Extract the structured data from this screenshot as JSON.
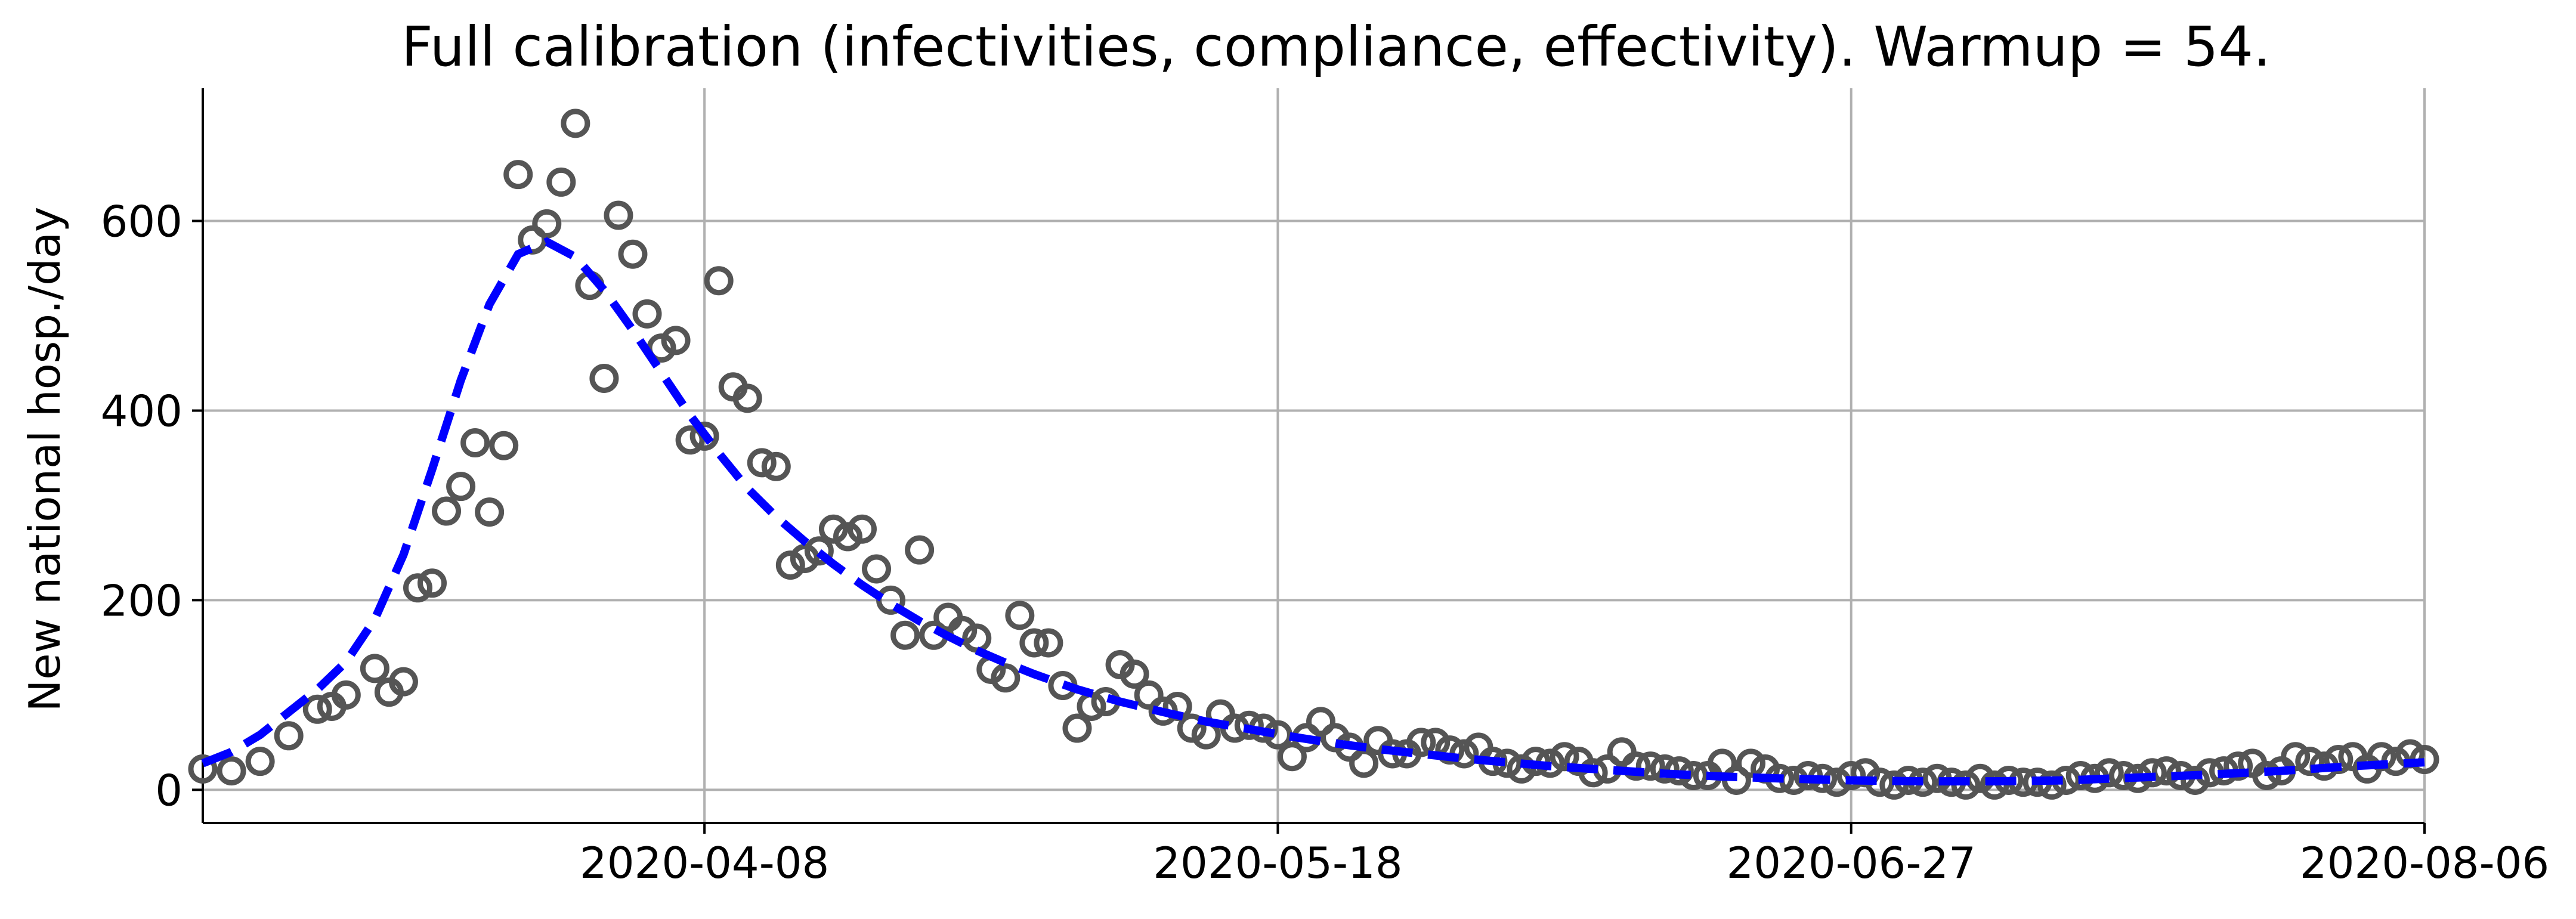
{
  "chart_data": {
    "type": "scatter",
    "title": "Full calibration (infectivities, compliance, effectivity). Warmup = 54.",
    "xlabel": "",
    "ylabel": "New national hosp./day",
    "x_start": "2020-03-04",
    "x_end": "2020-08-06",
    "xticks": [
      "2020-04-08",
      "2020-05-18",
      "2020-06-27",
      "2020-08-06"
    ],
    "yticks": [
      0,
      200,
      400,
      600
    ],
    "ylim": [
      -35,
      740
    ],
    "grid": true,
    "colors": {
      "observed": "#555555",
      "model": "#0000ff"
    },
    "series": [
      {
        "style": "open-circle",
        "points": [
          [
            "2020-03-04",
            22
          ],
          [
            "2020-03-06",
            20
          ],
          [
            "2020-03-08",
            30
          ],
          [
            "2020-03-10",
            57
          ],
          [
            "2020-03-12",
            85
          ],
          [
            "2020-03-13",
            88
          ],
          [
            "2020-03-14",
            100
          ],
          [
            "2020-03-16",
            128
          ],
          [
            "2020-03-17",
            103
          ],
          [
            "2020-03-18",
            114
          ],
          [
            "2020-03-19",
            213
          ],
          [
            "2020-03-20",
            218
          ],
          [
            "2020-03-21",
            294
          ],
          [
            "2020-03-22",
            320
          ],
          [
            "2020-03-23",
            366
          ],
          [
            "2020-03-24",
            293
          ],
          [
            "2020-03-25",
            363
          ],
          [
            "2020-03-26",
            649
          ],
          [
            "2020-03-27",
            580
          ],
          [
            "2020-03-28",
            597
          ],
          [
            "2020-03-29",
            641
          ],
          [
            "2020-03-30",
            703
          ],
          [
            "2020-03-31",
            532
          ],
          [
            "2020-04-01",
            434
          ],
          [
            "2020-04-02",
            606
          ],
          [
            "2020-04-03",
            565
          ],
          [
            "2020-04-04",
            502
          ],
          [
            "2020-04-05",
            466
          ],
          [
            "2020-04-06",
            474
          ],
          [
            "2020-04-07",
            369
          ],
          [
            "2020-04-08",
            373
          ],
          [
            "2020-04-09",
            537
          ],
          [
            "2020-04-10",
            425
          ],
          [
            "2020-04-11",
            413
          ],
          [
            "2020-04-12",
            345
          ],
          [
            "2020-04-13",
            341
          ],
          [
            "2020-04-14",
            237
          ],
          [
            "2020-04-15",
            244
          ],
          [
            "2020-04-16",
            252
          ],
          [
            "2020-04-17",
            275
          ],
          [
            "2020-04-18",
            267
          ],
          [
            "2020-04-19",
            275
          ],
          [
            "2020-04-20",
            233
          ],
          [
            "2020-04-21",
            200
          ],
          [
            "2020-04-22",
            163
          ],
          [
            "2020-04-23",
            253
          ],
          [
            "2020-04-24",
            163
          ],
          [
            "2020-04-25",
            182
          ],
          [
            "2020-04-26",
            168
          ],
          [
            "2020-04-27",
            160
          ],
          [
            "2020-04-28",
            127
          ],
          [
            "2020-04-29",
            118
          ],
          [
            "2020-04-30",
            184
          ],
          [
            "2020-05-01",
            155
          ],
          [
            "2020-05-02",
            155
          ],
          [
            "2020-05-03",
            110
          ],
          [
            "2020-05-04",
            65
          ],
          [
            "2020-05-05",
            88
          ],
          [
            "2020-05-06",
            93
          ],
          [
            "2020-05-07",
            132
          ],
          [
            "2020-05-08",
            122
          ],
          [
            "2020-05-09",
            100
          ],
          [
            "2020-05-10",
            83
          ],
          [
            "2020-05-11",
            88
          ],
          [
            "2020-05-12",
            65
          ],
          [
            "2020-05-13",
            58
          ],
          [
            "2020-05-14",
            80
          ],
          [
            "2020-05-15",
            65
          ],
          [
            "2020-05-16",
            68
          ],
          [
            "2020-05-17",
            65
          ],
          [
            "2020-05-18",
            58
          ],
          [
            "2020-05-19",
            35
          ],
          [
            "2020-05-20",
            55
          ],
          [
            "2020-05-21",
            72
          ],
          [
            "2020-05-22",
            55
          ],
          [
            "2020-05-23",
            45
          ],
          [
            "2020-05-24",
            28
          ],
          [
            "2020-05-25",
            52
          ],
          [
            "2020-05-26",
            38
          ],
          [
            "2020-05-27",
            38
          ],
          [
            "2020-05-28",
            50
          ],
          [
            "2020-05-29",
            50
          ],
          [
            "2020-05-30",
            42
          ],
          [
            "2020-05-31",
            38
          ],
          [
            "2020-06-01",
            45
          ],
          [
            "2020-06-02",
            30
          ],
          [
            "2020-06-03",
            28
          ],
          [
            "2020-06-04",
            22
          ],
          [
            "2020-06-05",
            30
          ],
          [
            "2020-06-06",
            28
          ],
          [
            "2020-06-07",
            35
          ],
          [
            "2020-06-08",
            30
          ],
          [
            "2020-06-09",
            18
          ],
          [
            "2020-06-10",
            22
          ],
          [
            "2020-06-11",
            40
          ],
          [
            "2020-06-12",
            25
          ],
          [
            "2020-06-13",
            25
          ],
          [
            "2020-06-14",
            22
          ],
          [
            "2020-06-15",
            20
          ],
          [
            "2020-06-16",
            15
          ],
          [
            "2020-06-17",
            15
          ],
          [
            "2020-06-18",
            28
          ],
          [
            "2020-06-19",
            10
          ],
          [
            "2020-06-20",
            28
          ],
          [
            "2020-06-21",
            22
          ],
          [
            "2020-06-22",
            12
          ],
          [
            "2020-06-23",
            10
          ],
          [
            "2020-06-24",
            15
          ],
          [
            "2020-06-25",
            12
          ],
          [
            "2020-06-26",
            8
          ],
          [
            "2020-06-27",
            15
          ],
          [
            "2020-06-28",
            18
          ],
          [
            "2020-06-29",
            8
          ],
          [
            "2020-06-30",
            5
          ],
          [
            "2020-07-01",
            10
          ],
          [
            "2020-07-02",
            8
          ],
          [
            "2020-07-03",
            12
          ],
          [
            "2020-07-04",
            8
          ],
          [
            "2020-07-05",
            5
          ],
          [
            "2020-07-06",
            12
          ],
          [
            "2020-07-07",
            5
          ],
          [
            "2020-07-08",
            10
          ],
          [
            "2020-07-09",
            8
          ],
          [
            "2020-07-10",
            8
          ],
          [
            "2020-07-11",
            5
          ],
          [
            "2020-07-12",
            10
          ],
          [
            "2020-07-13",
            15
          ],
          [
            "2020-07-14",
            12
          ],
          [
            "2020-07-15",
            18
          ],
          [
            "2020-07-16",
            15
          ],
          [
            "2020-07-17",
            12
          ],
          [
            "2020-07-18",
            18
          ],
          [
            "2020-07-19",
            20
          ],
          [
            "2020-07-20",
            15
          ],
          [
            "2020-07-21",
            10
          ],
          [
            "2020-07-22",
            18
          ],
          [
            "2020-07-23",
            20
          ],
          [
            "2020-07-24",
            25
          ],
          [
            "2020-07-25",
            28
          ],
          [
            "2020-07-26",
            15
          ],
          [
            "2020-07-27",
            20
          ],
          [
            "2020-07-28",
            35
          ],
          [
            "2020-07-29",
            30
          ],
          [
            "2020-07-30",
            25
          ],
          [
            "2020-07-31",
            32
          ],
          [
            "2020-08-01",
            35
          ],
          [
            "2020-08-02",
            22
          ],
          [
            "2020-08-03",
            35
          ],
          [
            "2020-08-04",
            30
          ],
          [
            "2020-08-05",
            38
          ],
          [
            "2020-08-06",
            32
          ]
        ]
      },
      {
        "style": "dashed-line",
        "points": [
          [
            "2020-03-04",
            28
          ],
          [
            "2020-03-06",
            40
          ],
          [
            "2020-03-08",
            58
          ],
          [
            "2020-03-10",
            82
          ],
          [
            "2020-03-12",
            106
          ],
          [
            "2020-03-14",
            135
          ],
          [
            "2020-03-16",
            180
          ],
          [
            "2020-03-18",
            248
          ],
          [
            "2020-03-20",
            338
          ],
          [
            "2020-03-22",
            432
          ],
          [
            "2020-03-24",
            512
          ],
          [
            "2020-03-26",
            565
          ],
          [
            "2020-03-28",
            578
          ],
          [
            "2020-03-30",
            562
          ],
          [
            "2020-04-01",
            527
          ],
          [
            "2020-04-03",
            485
          ],
          [
            "2020-04-05",
            440
          ],
          [
            "2020-04-07",
            395
          ],
          [
            "2020-04-09",
            355
          ],
          [
            "2020-04-11",
            318
          ],
          [
            "2020-04-13",
            288
          ],
          [
            "2020-04-15",
            262
          ],
          [
            "2020-04-17",
            238
          ],
          [
            "2020-04-19",
            216
          ],
          [
            "2020-04-21",
            196
          ],
          [
            "2020-04-23",
            178
          ],
          [
            "2020-04-25",
            162
          ],
          [
            "2020-04-27",
            147
          ],
          [
            "2020-04-29",
            134
          ],
          [
            "2020-05-01",
            122
          ],
          [
            "2020-05-04",
            106
          ],
          [
            "2020-05-07",
            93
          ],
          [
            "2020-05-10",
            82
          ],
          [
            "2020-05-13",
            72
          ],
          [
            "2020-05-16",
            64
          ],
          [
            "2020-05-19",
            56
          ],
          [
            "2020-05-22",
            49
          ],
          [
            "2020-05-25",
            43
          ],
          [
            "2020-05-28",
            38
          ],
          [
            "2020-05-31",
            33
          ],
          [
            "2020-06-03",
            29
          ],
          [
            "2020-06-06",
            25
          ],
          [
            "2020-06-10",
            21
          ],
          [
            "2020-06-14",
            17
          ],
          [
            "2020-06-18",
            14
          ],
          [
            "2020-06-22",
            12
          ],
          [
            "2020-06-27",
            10
          ],
          [
            "2020-07-02",
            9
          ],
          [
            "2020-07-07",
            9
          ],
          [
            "2020-07-12",
            10
          ],
          [
            "2020-07-17",
            13
          ],
          [
            "2020-07-22",
            16
          ],
          [
            "2020-07-27",
            20
          ],
          [
            "2020-08-01",
            25
          ],
          [
            "2020-08-06",
            29
          ]
        ]
      }
    ]
  }
}
